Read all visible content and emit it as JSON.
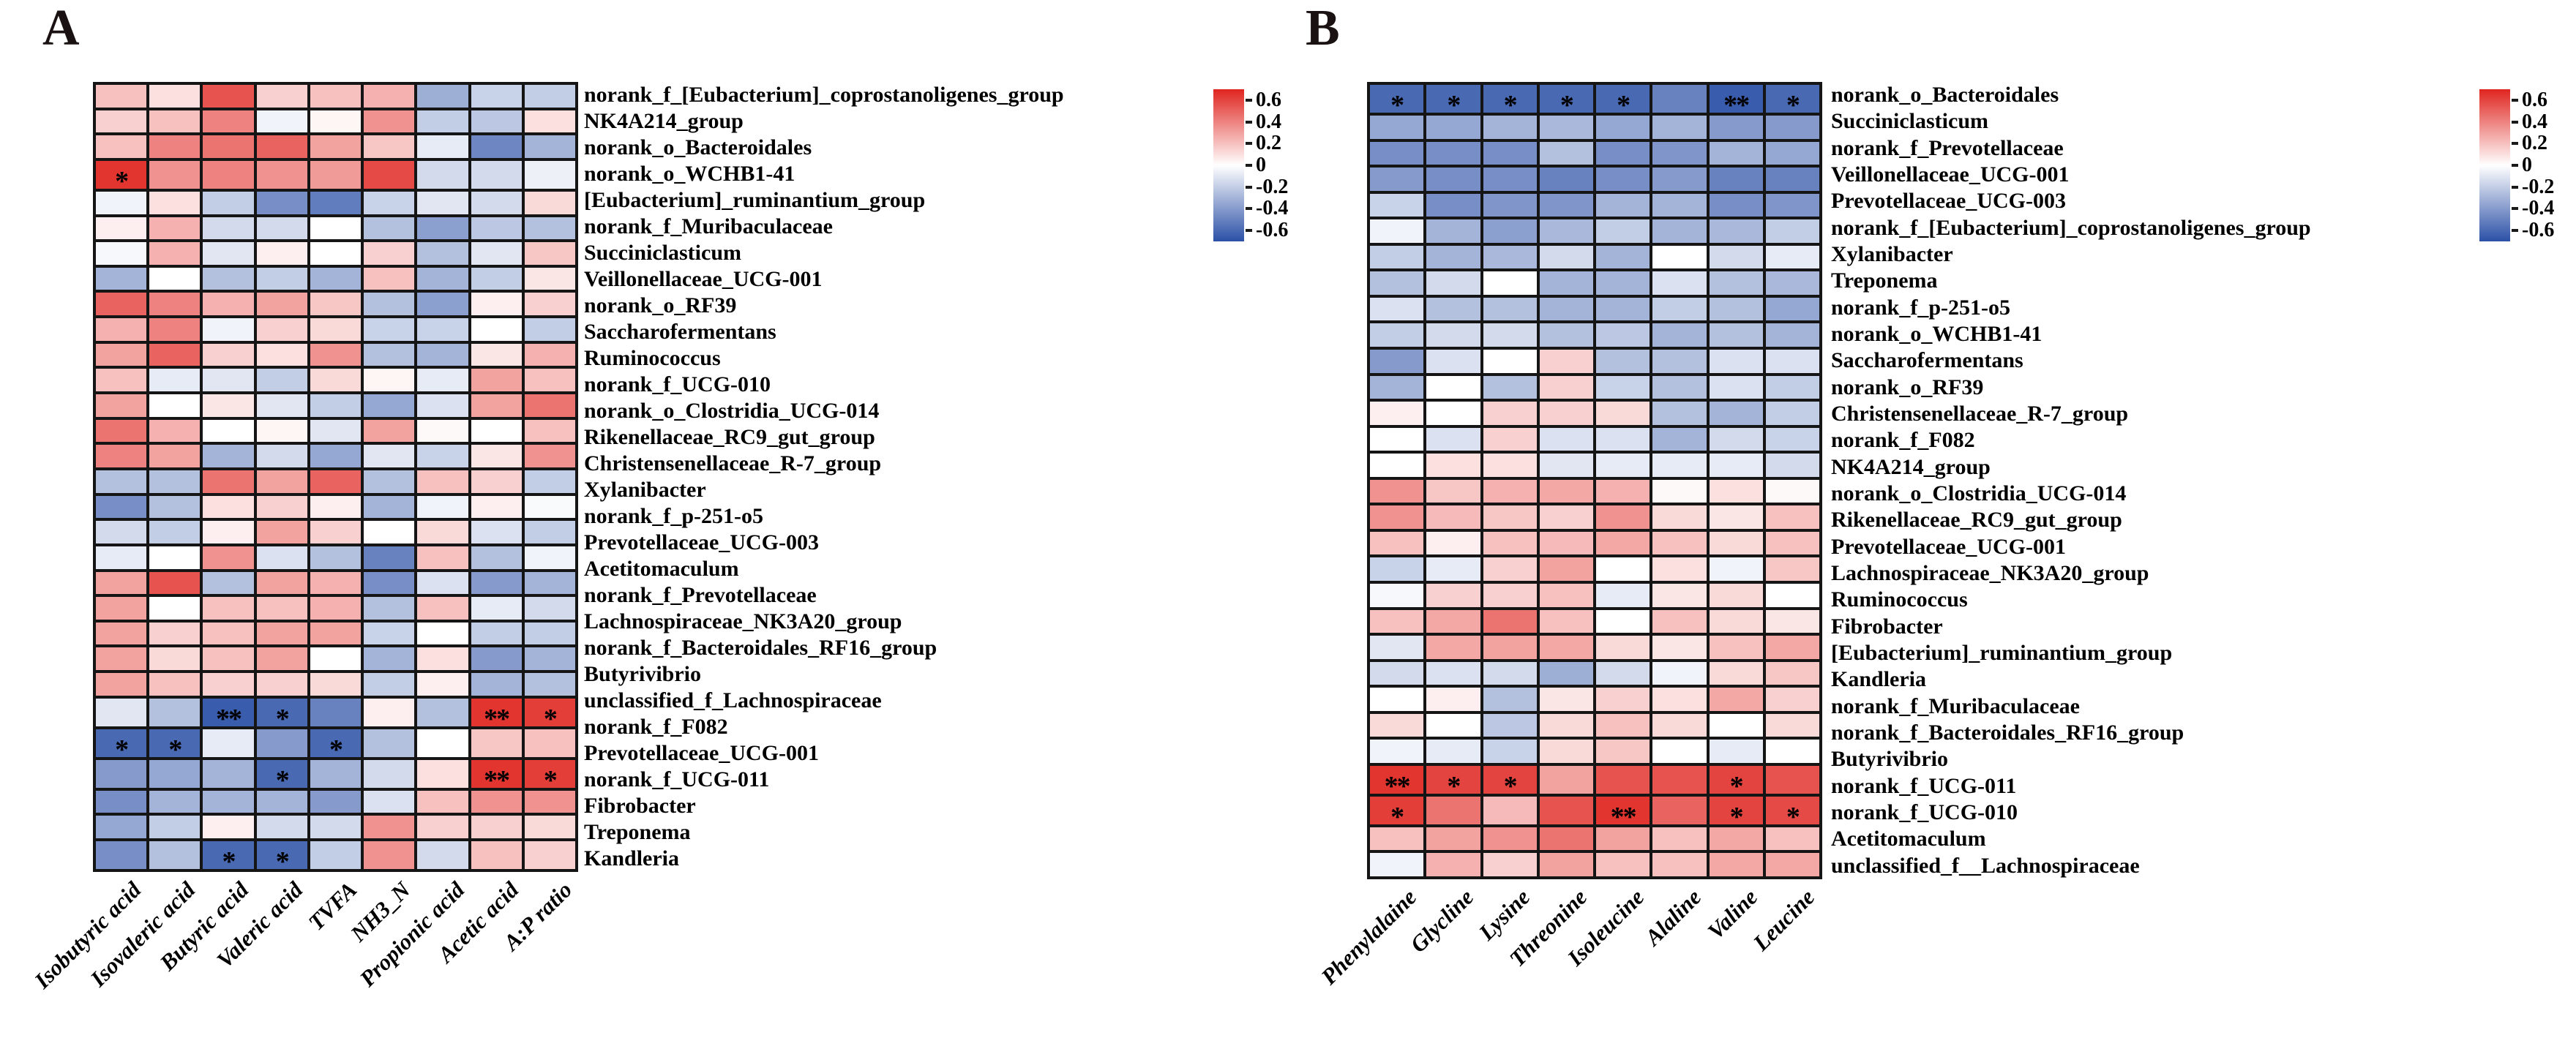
{
  "colors": {
    "background": "#ffffff",
    "grid_line": "#151515",
    "positive_max": "#e02520",
    "negative_max": "#2b50a6",
    "zero": "#ffffff",
    "star": "#000000"
  },
  "chart_data": [
    {
      "type": "heatmap",
      "title": "A",
      "legend_position": "right",
      "grid": true,
      "x_categories": [
        "Isobutyric acid",
        "Isovaleric acid",
        "Butyric acid",
        "Valeric acid",
        "TVFA",
        "NH3_N",
        "Propionic acid",
        "Acetic acid",
        "A:P ratio"
      ],
      "y_categories": [
        "norank_f_[Eubacterium]_coprostanoligenes_group",
        "NK4A214_group",
        "norank_o_Bacteroidales",
        "norank_o_WCHB1-41",
        "[Eubacterium]_ruminantium_group",
        "norank_f_Muribaculaceae",
        "Succiniclasticum",
        "Veillonellaceae_UCG-001",
        "norank_o_RF39",
        "Saccharofermentans",
        "Ruminococcus",
        "norank_f_UCG-010",
        "norank_o_Clostridia_UCG-014",
        "Rikenellaceae_RC9_gut_group",
        "Christensenellaceae_R-7_group",
        "Xylanibacter",
        "norank_f_p-251-o5",
        "Prevotellaceae_UCG-003",
        "Acetitomaculum",
        "norank_f_Prevotellaceae",
        "Lachnospiraceae_NK3A20_group",
        "norank_f_Bacteroidales_RF16_group",
        "Butyrivibrio",
        "unclassified_f_Lachnospiraceae",
        "norank_f_F082",
        "Prevotellaceae_UCG-001",
        "norank_f_UCG-011",
        "Fibrobacter",
        "Treponema",
        "Kandleria"
      ],
      "values": [
        [
          0.2,
          0.1,
          0.55,
          0.15,
          0.2,
          0.25,
          -0.32,
          -0.18,
          -0.2
        ],
        [
          0.15,
          0.2,
          0.4,
          -0.05,
          0.03,
          0.35,
          -0.2,
          -0.22,
          0.1
        ],
        [
          0.2,
          0.4,
          0.45,
          0.5,
          0.3,
          0.18,
          -0.08,
          -0.48,
          -0.3
        ],
        [
          0.65,
          0.35,
          0.4,
          0.35,
          0.32,
          0.58,
          -0.15,
          -0.15,
          -0.06
        ],
        [
          -0.05,
          0.1,
          -0.2,
          -0.45,
          -0.52,
          -0.18,
          -0.1,
          -0.15,
          0.12
        ],
        [
          0.05,
          0.25,
          -0.15,
          -0.15,
          0.0,
          -0.25,
          -0.38,
          -0.22,
          -0.25
        ],
        [
          -0.03,
          0.25,
          -0.1,
          0.05,
          0.0,
          0.15,
          -0.25,
          -0.1,
          0.18
        ],
        [
          -0.3,
          0.0,
          -0.25,
          -0.2,
          -0.3,
          0.2,
          -0.3,
          -0.2,
          0.08
        ],
        [
          0.5,
          0.4,
          0.25,
          0.3,
          0.18,
          -0.25,
          -0.38,
          0.05,
          0.15
        ],
        [
          0.25,
          0.4,
          -0.05,
          0.15,
          0.12,
          -0.18,
          -0.18,
          0.0,
          -0.2
        ],
        [
          0.3,
          0.5,
          0.15,
          0.1,
          0.35,
          -0.25,
          -0.3,
          0.08,
          0.25
        ],
        [
          0.2,
          -0.08,
          -0.1,
          -0.2,
          0.12,
          0.03,
          -0.08,
          0.3,
          0.2
        ],
        [
          0.3,
          0.0,
          0.08,
          -0.1,
          -0.2,
          -0.35,
          -0.12,
          0.3,
          0.45
        ],
        [
          0.45,
          0.25,
          0.0,
          0.03,
          -0.1,
          0.3,
          0.02,
          0.0,
          0.2
        ],
        [
          0.4,
          0.3,
          -0.3,
          -0.15,
          -0.35,
          -0.1,
          -0.18,
          0.08,
          0.35
        ],
        [
          -0.25,
          -0.25,
          0.45,
          0.3,
          0.5,
          -0.25,
          0.2,
          0.15,
          -0.2
        ],
        [
          -0.45,
          -0.25,
          0.1,
          0.15,
          0.05,
          -0.3,
          -0.05,
          0.05,
          -0.02
        ],
        [
          -0.15,
          -0.2,
          0.05,
          0.3,
          0.15,
          0.0,
          0.12,
          -0.12,
          -0.2
        ],
        [
          -0.08,
          0.0,
          0.35,
          -0.12,
          -0.25,
          -0.5,
          0.2,
          -0.25,
          -0.05
        ],
        [
          0.3,
          0.55,
          -0.25,
          0.3,
          0.25,
          -0.45,
          -0.12,
          -0.4,
          -0.3
        ],
        [
          0.3,
          0.0,
          0.2,
          0.2,
          0.25,
          -0.25,
          0.2,
          -0.08,
          -0.15
        ],
        [
          0.3,
          0.15,
          0.2,
          0.3,
          0.3,
          -0.18,
          0.0,
          -0.2,
          -0.2
        ],
        [
          0.3,
          0.12,
          0.2,
          0.3,
          0.0,
          -0.3,
          0.1,
          -0.4,
          -0.3
        ],
        [
          0.3,
          0.2,
          0.15,
          0.15,
          0.12,
          -0.2,
          0.05,
          -0.3,
          -0.25
        ],
        [
          -0.1,
          -0.25,
          -0.65,
          -0.6,
          -0.5,
          0.05,
          -0.25,
          0.65,
          0.62
        ],
        [
          -0.6,
          -0.6,
          -0.08,
          -0.4,
          -0.6,
          -0.25,
          0.0,
          0.18,
          0.2
        ],
        [
          -0.4,
          -0.35,
          -0.3,
          -0.6,
          -0.3,
          -0.15,
          0.1,
          0.65,
          0.62
        ],
        [
          -0.45,
          -0.3,
          -0.3,
          -0.3,
          -0.4,
          -0.12,
          0.2,
          0.35,
          0.35
        ],
        [
          -0.35,
          -0.2,
          0.05,
          -0.15,
          -0.15,
          0.35,
          0.15,
          0.15,
          0.12
        ],
        [
          -0.45,
          -0.25,
          -0.6,
          -0.6,
          -0.2,
          0.35,
          -0.15,
          0.2,
          0.15
        ]
      ],
      "significance": [
        [
          3,
          0,
          "*"
        ],
        [
          24,
          2,
          "**"
        ],
        [
          24,
          3,
          "*"
        ],
        [
          24,
          7,
          "**"
        ],
        [
          24,
          8,
          "*"
        ],
        [
          25,
          0,
          "*"
        ],
        [
          25,
          1,
          "*"
        ],
        [
          25,
          4,
          "*"
        ],
        [
          26,
          3,
          "*"
        ],
        [
          26,
          7,
          "**"
        ],
        [
          26,
          8,
          "*"
        ],
        [
          29,
          2,
          "*"
        ],
        [
          29,
          3,
          "*"
        ]
      ],
      "colorbar": {
        "tick_labels": [
          "0.6",
          "0.4",
          "0.2",
          "0",
          "-0.2",
          "-0.4",
          "-0.6"
        ],
        "vmin": -0.7,
        "vmax": 0.7
      }
    },
    {
      "type": "heatmap",
      "title": "B",
      "legend_position": "right",
      "grid": true,
      "x_categories": [
        "Phenylalaine",
        "Glycline",
        "Lysine",
        "Threonine",
        "Isoleucine",
        "Alaline",
        "Valine",
        "Leucine"
      ],
      "y_categories": [
        "norank_o_Bacteroidales",
        "Succiniclasticum",
        "norank_f_Prevotellaceae",
        "Veillonellaceae_UCG-001",
        "Prevotellaceae_UCG-003",
        "norank_f_[Eubacterium]_coprostanoligenes_group",
        "Xylanibacter",
        "Treponema",
        "norank_f_p-251-o5",
        "norank_o_WCHB1-41",
        "Saccharofermentans",
        "norank_o_RF39",
        "Christensenellaceae_R-7_group",
        "norank_f_F082",
        "NK4A214_group",
        "norank_o_Clostridia_UCG-014",
        "Rikenellaceae_RC9_gut_group",
        "Prevotellaceae_UCG-001",
        "Lachnospiraceae_NK3A20_group",
        "Ruminococcus",
        "Fibrobacter",
        "[Eubacterium]_ruminantium_group",
        "Kandleria",
        "norank_f_Muribaculaceae",
        "norank_f_Bacteroidales_RF16_group",
        "Butyrivibrio",
        "norank_f_UCG-011",
        "norank_f_UCG-010",
        "Acetitomaculum",
        "unclassified_f__Lachnospiraceae"
      ],
      "values": [
        [
          -0.6,
          -0.6,
          -0.6,
          -0.6,
          -0.6,
          -0.5,
          -0.65,
          -0.6
        ],
        [
          -0.35,
          -0.35,
          -0.3,
          -0.28,
          -0.35,
          -0.3,
          -0.4,
          -0.4
        ],
        [
          -0.45,
          -0.45,
          -0.45,
          -0.25,
          -0.45,
          -0.42,
          -0.3,
          -0.35
        ],
        [
          -0.4,
          -0.45,
          -0.45,
          -0.5,
          -0.45,
          -0.4,
          -0.5,
          -0.5
        ],
        [
          -0.18,
          -0.45,
          -0.42,
          -0.42,
          -0.3,
          -0.3,
          -0.45,
          -0.42
        ],
        [
          -0.05,
          -0.3,
          -0.38,
          -0.28,
          -0.2,
          -0.3,
          -0.28,
          -0.2
        ],
        [
          -0.2,
          -0.3,
          -0.28,
          -0.15,
          -0.3,
          0.0,
          -0.15,
          -0.08
        ],
        [
          -0.25,
          -0.15,
          0.0,
          -0.3,
          -0.3,
          -0.12,
          -0.25,
          -0.28
        ],
        [
          -0.12,
          -0.25,
          -0.25,
          -0.3,
          -0.3,
          -0.2,
          -0.25,
          -0.35
        ],
        [
          -0.2,
          -0.15,
          -0.15,
          -0.25,
          -0.22,
          -0.3,
          -0.25,
          -0.3
        ],
        [
          -0.4,
          -0.12,
          0.0,
          0.15,
          -0.25,
          -0.25,
          -0.12,
          -0.12
        ],
        [
          -0.3,
          0.0,
          -0.25,
          0.15,
          -0.18,
          -0.25,
          -0.12,
          -0.2
        ],
        [
          0.05,
          0.0,
          0.15,
          0.15,
          0.12,
          -0.25,
          -0.3,
          -0.2
        ],
        [
          0.0,
          -0.12,
          0.15,
          -0.12,
          -0.12,
          -0.3,
          -0.15,
          -0.18
        ],
        [
          0.0,
          0.1,
          0.1,
          -0.1,
          -0.08,
          -0.08,
          -0.08,
          -0.15
        ],
        [
          0.35,
          0.18,
          0.25,
          0.28,
          0.25,
          0.02,
          0.1,
          0.02
        ],
        [
          0.35,
          0.22,
          0.18,
          0.15,
          0.35,
          0.12,
          0.08,
          0.2
        ],
        [
          0.2,
          0.05,
          0.2,
          0.22,
          0.28,
          0.2,
          0.12,
          0.2
        ],
        [
          -0.18,
          -0.08,
          0.15,
          0.3,
          0.0,
          0.1,
          -0.05,
          0.18
        ],
        [
          -0.03,
          0.15,
          0.15,
          0.2,
          -0.08,
          0.08,
          0.12,
          0.0
        ],
        [
          0.2,
          0.28,
          0.45,
          0.2,
          0.0,
          0.2,
          0.12,
          0.08
        ],
        [
          -0.1,
          0.28,
          0.3,
          0.28,
          0.12,
          0.08,
          0.2,
          0.28
        ],
        [
          -0.15,
          -0.12,
          -0.15,
          -0.32,
          -0.15,
          -0.05,
          0.12,
          0.18
        ],
        [
          0.0,
          0.05,
          -0.25,
          0.08,
          0.15,
          0.1,
          0.28,
          0.15
        ],
        [
          0.12,
          0.0,
          -0.22,
          0.12,
          0.2,
          0.12,
          0.0,
          0.12
        ],
        [
          -0.05,
          -0.08,
          -0.18,
          0.12,
          0.18,
          0.0,
          -0.08,
          0.0
        ],
        [
          0.65,
          0.6,
          0.6,
          0.3,
          0.55,
          0.55,
          0.6,
          0.55
        ],
        [
          0.62,
          0.45,
          0.22,
          0.55,
          0.65,
          0.5,
          0.6,
          0.58
        ],
        [
          0.2,
          0.3,
          0.35,
          0.45,
          0.3,
          0.2,
          0.28,
          0.2
        ],
        [
          -0.05,
          0.25,
          0.15,
          0.3,
          0.2,
          0.2,
          0.28,
          0.28
        ]
      ],
      "significance": [
        [
          0,
          0,
          "*"
        ],
        [
          0,
          1,
          "*"
        ],
        [
          0,
          2,
          "*"
        ],
        [
          0,
          3,
          "*"
        ],
        [
          0,
          4,
          "*"
        ],
        [
          0,
          6,
          "**"
        ],
        [
          0,
          7,
          "*"
        ],
        [
          26,
          0,
          "**"
        ],
        [
          26,
          1,
          "*"
        ],
        [
          26,
          2,
          "*"
        ],
        [
          26,
          6,
          "*"
        ],
        [
          27,
          0,
          "*"
        ],
        [
          27,
          4,
          "**"
        ],
        [
          27,
          6,
          "*"
        ],
        [
          27,
          7,
          "*"
        ]
      ],
      "colorbar": {
        "tick_labels": [
          "0.6",
          "0.4",
          "0.2",
          "0",
          "-0.2",
          "-0.4",
          "-0.6"
        ],
        "vmin": -0.7,
        "vmax": 0.7
      }
    }
  ]
}
